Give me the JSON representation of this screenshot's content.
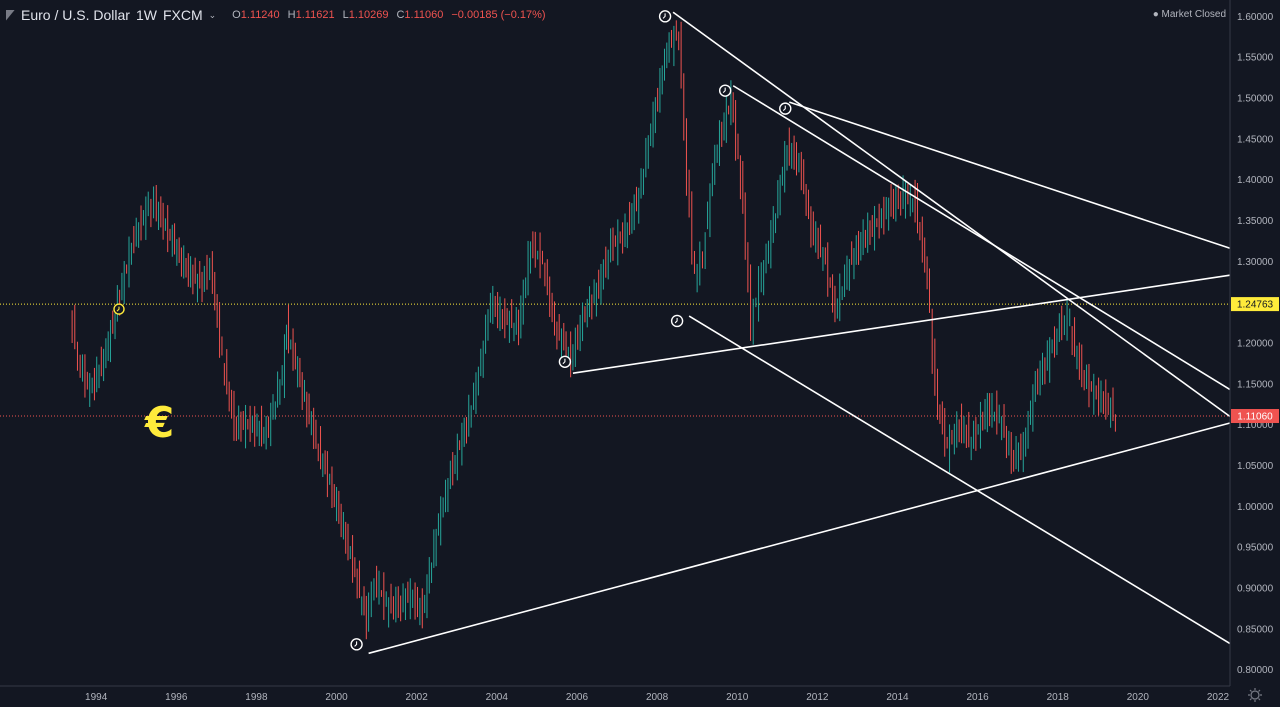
{
  "header": {
    "symbol": "Euro / U.S. Dollar",
    "interval": "1W",
    "exchange": "FXCM",
    "ohlc": {
      "o_label": "O",
      "o": "1.11240",
      "h_label": "H",
      "h": "1.11621",
      "l_label": "L",
      "l": "1.10269",
      "c_label": "C",
      "c": "1.11060",
      "change": "−0.00185 (−0.17%)"
    },
    "market_status": "Market Closed",
    "colors": {
      "up": "#26a69a",
      "down": "#ef5350",
      "accent_yellow": "#ffeb3b",
      "line": "#ffffff",
      "background": "#131722"
    }
  },
  "chart_data": {
    "type": "line",
    "title": "Euro / U.S. Dollar",
    "xlabel": "",
    "ylabel": "",
    "xlim": [
      1991.6,
      2022.3
    ],
    "ylim": [
      0.78,
      1.62
    ],
    "x_ticks": [
      "1994",
      "1996",
      "1998",
      "2000",
      "2002",
      "2004",
      "2006",
      "2008",
      "2010",
      "2012",
      "2014",
      "2016",
      "2018",
      "2020",
      "2022"
    ],
    "y_ticks": [
      "1.60000",
      "1.55000",
      "1.50000",
      "1.45000",
      "1.40000",
      "1.35000",
      "1.30000",
      "1.25000",
      "1.20000",
      "1.15000",
      "1.10000",
      "1.05000",
      "1.00000",
      "0.95000",
      "0.90000",
      "0.85000",
      "0.80000"
    ],
    "price_series": {
      "name": "EURUSD",
      "x": [
        1993.4,
        1993.6,
        1993.9,
        1994.3,
        1994.7,
        1995.0,
        1995.3,
        1995.5,
        1995.9,
        1996.3,
        1996.7,
        1996.9,
        1997.2,
        1997.5,
        1997.9,
        1998.3,
        1998.7,
        1998.8,
        1999.2,
        1999.6,
        2000.0,
        2000.4,
        2000.8,
        2001.0,
        2001.3,
        2001.6,
        2001.9,
        2002.2,
        2002.6,
        2002.9,
        2003.3,
        2003.6,
        2003.9,
        2004.2,
        2004.6,
        2004.9,
        2005.2,
        2005.5,
        2005.9,
        2006.2,
        2006.6,
        2006.9,
        2007.2,
        2007.6,
        2007.9,
        2008.3,
        2008.6,
        2008.8,
        2009.0,
        2009.2,
        2009.5,
        2009.9,
        2010.2,
        2010.4,
        2010.6,
        2010.9,
        2011.3,
        2011.6,
        2011.9,
        2012.2,
        2012.5,
        2012.8,
        2013.2,
        2013.6,
        2013.9,
        2014.2,
        2014.5,
        2014.8,
        2015.0,
        2015.3,
        2015.6,
        2015.9,
        2016.3,
        2016.6,
        2016.9,
        2017.2,
        2017.5,
        2017.8,
        2018.1,
        2018.3,
        2018.6,
        2018.9,
        2019.2,
        2019.5
      ],
      "y": [
        1.24,
        1.18,
        1.14,
        1.19,
        1.27,
        1.33,
        1.36,
        1.37,
        1.33,
        1.29,
        1.27,
        1.3,
        1.18,
        1.1,
        1.1,
        1.09,
        1.16,
        1.22,
        1.14,
        1.07,
        1.01,
        0.94,
        0.86,
        0.91,
        0.88,
        0.88,
        0.89,
        0.87,
        0.98,
        1.04,
        1.1,
        1.16,
        1.25,
        1.23,
        1.22,
        1.32,
        1.3,
        1.22,
        1.18,
        1.23,
        1.27,
        1.32,
        1.33,
        1.38,
        1.46,
        1.56,
        1.58,
        1.4,
        1.28,
        1.31,
        1.43,
        1.5,
        1.37,
        1.22,
        1.27,
        1.33,
        1.44,
        1.42,
        1.34,
        1.31,
        1.24,
        1.29,
        1.33,
        1.35,
        1.37,
        1.38,
        1.37,
        1.28,
        1.14,
        1.07,
        1.1,
        1.08,
        1.12,
        1.11,
        1.06,
        1.07,
        1.15,
        1.18,
        1.22,
        1.23,
        1.17,
        1.14,
        1.13,
        1.11
      ]
    },
    "trend_lines": [
      {
        "x": [
          2008.4,
          2022.3
        ],
        "y": [
          1.605,
          1.11
        ]
      },
      {
        "x": [
          2009.9,
          2022.3
        ],
        "y": [
          1.515,
          1.143
        ]
      },
      {
        "x": [
          2011.3,
          2022.3
        ],
        "y": [
          1.495,
          1.316
        ]
      },
      {
        "x": [
          2005.9,
          2022.3
        ],
        "y": [
          1.163,
          1.283
        ]
      },
      {
        "x": [
          2008.8,
          2022.3
        ],
        "y": [
          1.233,
          0.832
        ]
      },
      {
        "x": [
          2000.8,
          2022.3
        ],
        "y": [
          0.82,
          1.102
        ]
      }
    ],
    "markers": [
      {
        "x": 2008.2,
        "y": 1.6
      },
      {
        "x": 2009.7,
        "y": 1.509
      },
      {
        "x": 2011.2,
        "y": 1.487
      },
      {
        "x": 2008.5,
        "y": 1.227
      },
      {
        "x": 2005.7,
        "y": 1.177
      },
      {
        "x": 2000.5,
        "y": 0.831
      }
    ],
    "horizontal_levels": [
      {
        "value": 1.24763,
        "label": "1.24763",
        "color": "#ffeb3b"
      },
      {
        "value": 1.1106,
        "label": "1.11060",
        "color": "#ef5350"
      }
    ],
    "euro_symbol": "€",
    "grid": false,
    "legend": "none"
  }
}
